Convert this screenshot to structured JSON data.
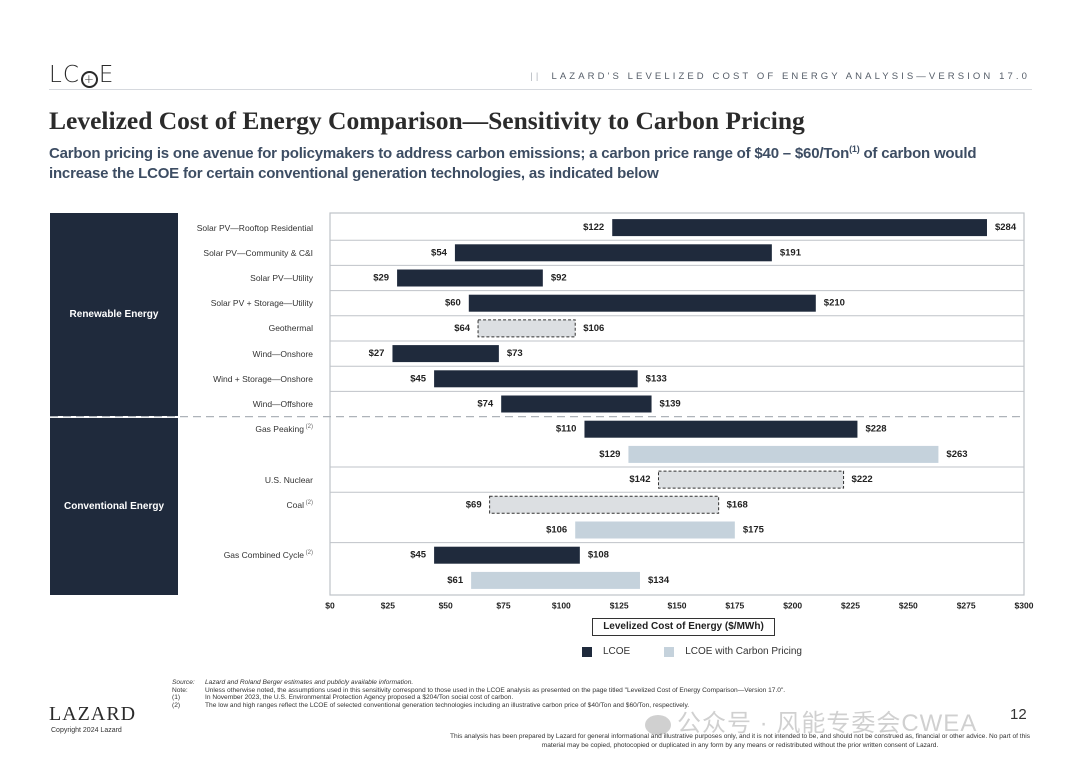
{
  "header": {
    "logo": {
      "pre": "LC",
      "mid": "+",
      "post": "E"
    },
    "separator": "||",
    "document_title": "LAZARD'S LEVELIZED COST OF ENERGY ANALYSIS—VERSION 17.0"
  },
  "title": "Levelized Cost of Energy Comparison—Sensitivity to Carbon Pricing",
  "subtitle": {
    "part1": "Carbon pricing is one avenue for policymakers to address carbon emissions; a carbon price range of $40 – $60/Ton",
    "footnote_ref": "(1)",
    "part2": " of carbon would increase the LCOE for certain conventional generation technologies, as indicated below"
  },
  "colors": {
    "lcoe": "#1f2a3c",
    "lcoe_carbon": "#c5d2dc",
    "dashed_fill": "#dcdfe2",
    "grid": "#bfc3c8",
    "category_block": "#1f2a3c"
  },
  "chart_data": {
    "type": "bar",
    "orientation": "horizontal-floating-range",
    "xlabel": "Levelized Cost of Energy ($/MWh)",
    "xlim": [
      0,
      300
    ],
    "xticks": [
      0,
      25,
      50,
      75,
      100,
      125,
      150,
      175,
      200,
      225,
      250,
      275,
      300
    ],
    "xtick_labels": [
      "$0",
      "$25",
      "$50",
      "$75",
      "$100",
      "$125",
      "$150",
      "$175",
      "$200",
      "$225",
      "$250",
      "$275",
      "$300"
    ],
    "legend": [
      {
        "name": "LCOE",
        "key": "lcoe"
      },
      {
        "name": "LCOE with Carbon Pricing",
        "key": "lcoe_carbon"
      }
    ],
    "legend_position": "bottom-center",
    "groups": [
      {
        "name": "Renewable Energy",
        "rows": [
          {
            "label": "Solar PV—Rooftop Residential",
            "fn": "",
            "bars": [
              {
                "series": "LCOE",
                "low": 122,
                "high": 284,
                "dashed": false
              }
            ]
          },
          {
            "label": "Solar PV—Community & C&I",
            "fn": "",
            "bars": [
              {
                "series": "LCOE",
                "low": 54,
                "high": 191,
                "dashed": false
              }
            ]
          },
          {
            "label": "Solar PV—Utility",
            "fn": "",
            "bars": [
              {
                "series": "LCOE",
                "low": 29,
                "high": 92,
                "dashed": false
              }
            ]
          },
          {
            "label": "Solar PV + Storage—Utility",
            "fn": "",
            "bars": [
              {
                "series": "LCOE",
                "low": 60,
                "high": 210,
                "dashed": false
              }
            ]
          },
          {
            "label": "Geothermal",
            "fn": "",
            "bars": [
              {
                "series": "LCOE",
                "low": 64,
                "high": 106,
                "dashed": true
              }
            ]
          },
          {
            "label": "Wind—Onshore",
            "fn": "",
            "bars": [
              {
                "series": "LCOE",
                "low": 27,
                "high": 73,
                "dashed": false
              }
            ]
          },
          {
            "label": "Wind + Storage—Onshore",
            "fn": "",
            "bars": [
              {
                "series": "LCOE",
                "low": 45,
                "high": 133,
                "dashed": false
              }
            ]
          },
          {
            "label": "Wind—Offshore",
            "fn": "",
            "bars": [
              {
                "series": "LCOE",
                "low": 74,
                "high": 139,
                "dashed": false
              }
            ]
          }
        ]
      },
      {
        "name": "Conventional Energy",
        "rows": [
          {
            "label": "Gas Peaking",
            "fn": "(2)",
            "bars": [
              {
                "series": "LCOE",
                "low": 110,
                "high": 228,
                "dashed": false
              },
              {
                "series": "LCOE with Carbon Pricing",
                "low": 129,
                "high": 263,
                "dashed": false
              }
            ]
          },
          {
            "label": "U.S. Nuclear",
            "fn": "",
            "bars": [
              {
                "series": "LCOE",
                "low": 142,
                "high": 222,
                "dashed": true
              }
            ]
          },
          {
            "label": "Coal",
            "fn": "(2)",
            "bars": [
              {
                "series": "LCOE",
                "low": 69,
                "high": 168,
                "dashed": true
              },
              {
                "series": "LCOE with Carbon Pricing",
                "low": 106,
                "high": 175,
                "dashed": false
              }
            ]
          },
          {
            "label": "Gas Combined Cycle",
            "fn": "(2)",
            "bars": [
              {
                "series": "LCOE",
                "low": 45,
                "high": 108,
                "dashed": false
              },
              {
                "series": "LCOE with Carbon Pricing",
                "low": 61,
                "high": 134,
                "dashed": false
              }
            ]
          }
        ]
      }
    ]
  },
  "footnotes": [
    {
      "key": "Source:",
      "text": "Lazard and Roland Berger estimates and publicly available information.",
      "italic": true
    },
    {
      "key": "Note:",
      "text": "Unless otherwise noted, the assumptions used in this sensitivity correspond to those used in the LCOE analysis as presented on the page titled \"Levelized Cost of Energy Comparison—Version 17.0\".",
      "italic": false
    },
    {
      "key": "(1)",
      "text": "In November 2023, the U.S. Environmental Protection Agency proposed a $204/Ton social cost of carbon.",
      "italic": false
    },
    {
      "key": "(2)",
      "text": "The low and high ranges reflect the LCOE of selected conventional generation technologies including an illustrative carbon price of $40/Ton and $60/Ton, respectively.",
      "italic": false
    }
  ],
  "footer": {
    "brand": "LAZARD",
    "copyright": "Copyright 2024 Lazard",
    "page_number": "12",
    "disclaimer": "This analysis has been prepared by Lazard for general informational and illustrative purposes only, and it is not intended to be, and should not be construed as, financial or other advice. No part of this material may be copied, photocopied or duplicated in any form by any means or redistributed without the prior written consent of Lazard.",
    "watermark": "公众号 · 风能专委会CWEA"
  }
}
